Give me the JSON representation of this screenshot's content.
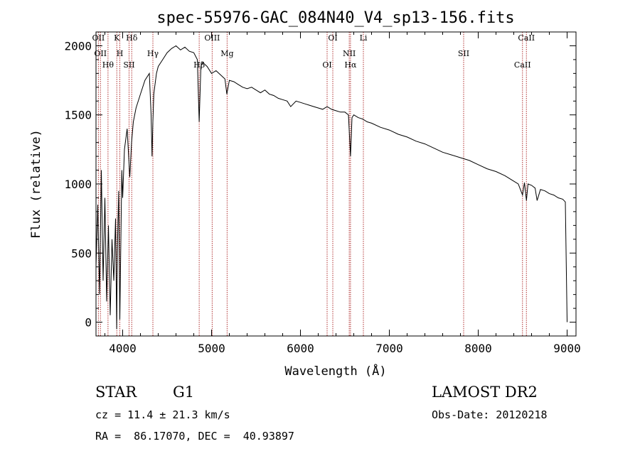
{
  "chart_data": {
    "type": "line",
    "title": "spec-55976-GAC_084N40_V4_sp13-156.fits",
    "xlabel": "Wavelength (Å)",
    "ylabel": "Flux (relative)",
    "xlim": [
      3700,
      9100
    ],
    "ylim": [
      -100,
      2100
    ],
    "x_ticks": [
      4000,
      5000,
      6000,
      7000,
      8000,
      9000
    ],
    "y_ticks": [
      0,
      500,
      1000,
      1500,
      2000
    ],
    "grid": false,
    "series": [
      {
        "name": "",
        "color": "#000000",
        "x": [
          3700,
          3720,
          3740,
          3760,
          3780,
          3800,
          3820,
          3840,
          3860,
          3880,
          3900,
          3920,
          3933,
          3940,
          3955,
          3968,
          3980,
          3990,
          4000,
          4020,
          4050,
          4080,
          4100,
          4120,
          4150,
          4200,
          4250,
          4300,
          4320,
          4330,
          4340,
          4350,
          4360,
          4380,
          4400,
          4450,
          4500,
          4550,
          4600,
          4650,
          4700,
          4750,
          4800,
          4840,
          4861,
          4880,
          4900,
          4950,
          5000,
          5050,
          5100,
          5150,
          5172,
          5200,
          5250,
          5300,
          5350,
          5400,
          5450,
          5500,
          5550,
          5600,
          5650,
          5700,
          5750,
          5800,
          5850,
          5890,
          5950,
          6000,
          6050,
          6100,
          6150,
          6200,
          6250,
          6300,
          6350,
          6400,
          6450,
          6500,
          6540,
          6563,
          6580,
          6600,
          6650,
          6700,
          6750,
          6800,
          6900,
          7000,
          7100,
          7200,
          7300,
          7400,
          7500,
          7600,
          7700,
          7800,
          7900,
          8000,
          8100,
          8200,
          8300,
          8400,
          8450,
          8498,
          8520,
          8542,
          8560,
          8600,
          8640,
          8662,
          8700,
          8750,
          8800,
          8850,
          8900,
          8950,
          8980,
          9000
        ],
        "y": [
          400,
          850,
          200,
          1100,
          300,
          900,
          150,
          700,
          50,
          600,
          300,
          750,
          -50,
          500,
          950,
          20,
          600,
          1100,
          900,
          1250,
          1400,
          1050,
          1300,
          1450,
          1550,
          1650,
          1750,
          1800,
          1500,
          1200,
          1450,
          1650,
          1700,
          1800,
          1850,
          1900,
          1950,
          1980,
          2000,
          1970,
          1990,
          1960,
          1950,
          1900,
          1450,
          1850,
          1880,
          1850,
          1800,
          1820,
          1790,
          1760,
          1650,
          1750,
          1740,
          1720,
          1700,
          1690,
          1700,
          1680,
          1660,
          1680,
          1650,
          1640,
          1620,
          1610,
          1600,
          1560,
          1600,
          1590,
          1580,
          1570,
          1560,
          1550,
          1540,
          1560,
          1540,
          1530,
          1520,
          1520,
          1500,
          1200,
          1480,
          1500,
          1480,
          1470,
          1450,
          1440,
          1410,
          1390,
          1360,
          1340,
          1310,
          1290,
          1260,
          1230,
          1210,
          1190,
          1170,
          1140,
          1110,
          1090,
          1060,
          1020,
          1000,
          920,
          1010,
          880,
          1000,
          990,
          970,
          880,
          960,
          950,
          930,
          920,
          900,
          890,
          870,
          0
        ]
      }
    ],
    "lines": [
      {
        "wavelength": 3727,
        "label": "OII"
      },
      {
        "wavelength": 3750,
        "label": "OII"
      },
      {
        "wavelength": 3835,
        "label": "Hθ"
      },
      {
        "wavelength": 3934,
        "label": "K"
      },
      {
        "wavelength": 3968,
        "label": "H"
      },
      {
        "wavelength": 4072,
        "label": "SII"
      },
      {
        "wavelength": 4102,
        "label": "Hδ"
      },
      {
        "wavelength": 4340,
        "label": "Hγ"
      },
      {
        "wavelength": 4861,
        "label": "Hβ"
      },
      {
        "wavelength": 5007,
        "label": "OIII"
      },
      {
        "wavelength": 5175,
        "label": "Mg"
      },
      {
        "wavelength": 6300,
        "label": "OI"
      },
      {
        "wavelength": 6364,
        "label": "OI"
      },
      {
        "wavelength": 6549,
        "label": "NII"
      },
      {
        "wavelength": 6563,
        "label": "Hα"
      },
      {
        "wavelength": 6708,
        "label": "Li"
      },
      {
        "wavelength": 7836,
        "label": "SII"
      },
      {
        "wavelength": 8498,
        "label": "CaII"
      },
      {
        "wavelength": 8542,
        "label": "CaII"
      }
    ],
    "line_color": "#b03030"
  },
  "info": {
    "object_type": "STAR",
    "subclass": "G1",
    "survey": "LAMOST DR2",
    "cz": "cz = 11.4 ± 21.3 km/s",
    "obs_date": "Obs-Date: 20120218",
    "coords": "RA =  86.17070, DEC =  40.93897"
  }
}
